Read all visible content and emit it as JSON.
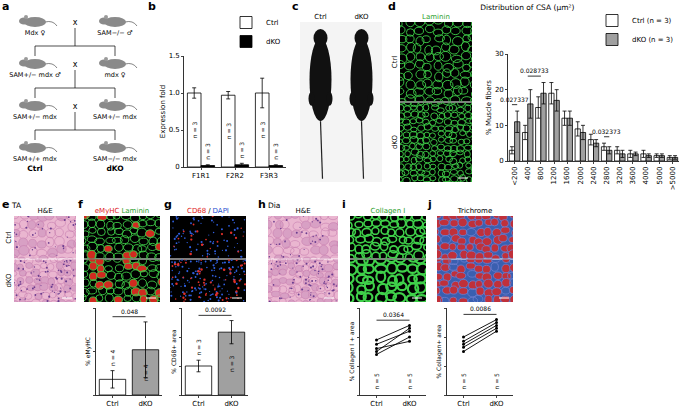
{
  "panel_labels": [
    "a",
    "b",
    "c",
    "d",
    "e",
    "f",
    "g",
    "h",
    "i",
    "j"
  ],
  "scheme": {
    "generations": [
      [
        "Mdx ♀",
        "SAM−/− ♂"
      ],
      [
        "SAM+/− mdx ♂",
        "mdx ♀"
      ],
      [
        "SAM+/− mdx",
        "SAM+/− mdx"
      ],
      [
        "SAM+/+ mdx",
        "SAM−/− mdx"
      ]
    ],
    "cross": "x",
    "groups": [
      "Ctrl",
      "dKO"
    ]
  },
  "images": {
    "c": {
      "columns": [
        "Ctrl",
        "dKO"
      ]
    },
    "d": {
      "stain": [
        {
          "text": "Laminin",
          "color": "#2ca02c"
        }
      ],
      "rows": [
        "Ctrl",
        "dKO"
      ]
    },
    "e": {
      "tissue": "TA",
      "stain": [
        {
          "text": "H&E",
          "color": "#000000"
        }
      ],
      "rows": [
        "Ctrl",
        "dKO"
      ]
    },
    "f": {
      "stain": [
        {
          "text": "eMyHC",
          "color": "#e0201b"
        },
        {
          "text": "Laminin",
          "color": "#2ca02c"
        }
      ]
    },
    "g": {
      "stain": [
        {
          "text": "CD68",
          "color": "#e0201b"
        },
        {
          "text": "/",
          "color": "#000000"
        },
        {
          "text": "DAPI",
          "color": "#1f4fd0"
        }
      ]
    },
    "h": {
      "tissue": "Dia",
      "stain": [
        {
          "text": "H&E",
          "color": "#000000"
        }
      ]
    },
    "i": {
      "stain": [
        {
          "text": "Collagen I",
          "color": "#2ca02c"
        }
      ]
    },
    "j": {
      "stain": [
        {
          "text": "Trichrome",
          "color": "#000000"
        }
      ]
    }
  },
  "chart_data": [
    {
      "type": "bar",
      "ylabel": "Expression fold",
      "categories": [
        "F1R1",
        "F2R2",
        "F3R3"
      ],
      "series": [
        {
          "name": "Ctrl",
          "color": "#ffffff",
          "values": [
            1.0,
            0.97,
            1.0
          ],
          "errors": [
            0.07,
            0.05,
            0.2
          ]
        },
        {
          "name": "dKO",
          "color": "#000000",
          "values": [
            0.02,
            0.03,
            0.02
          ],
          "errors": [
            0.01,
            0.02,
            0.01
          ]
        }
      ],
      "ylim": [
        0,
        1.5
      ],
      "yticks": [
        0,
        0.5,
        {
          "value": 1,
          "label": "1.0"
        },
        1.5
      ],
      "grid": false,
      "legend": "top right",
      "annotations": [
        {
          "text": "n = 3",
          "category": "F1R1",
          "series": "Ctrl"
        },
        {
          "text": "n = 3",
          "category": "F1R1",
          "series": "dKO"
        },
        {
          "text": "n = 3",
          "category": "F2R2",
          "series": "Ctrl"
        },
        {
          "text": "n = 3",
          "category": "F2R2",
          "series": "dKO"
        },
        {
          "text": "n = 3",
          "category": "F3R3",
          "series": "Ctrl"
        },
        {
          "text": "n = 3",
          "category": "F3R3",
          "series": "dKO"
        }
      ]
    },
    {
      "type": "bar",
      "title": "Distribution of CSA (µm²)",
      "ylabel": "% Muscle fibers",
      "categories": [
        "<200",
        "400",
        "800",
        "1200",
        "1600",
        "2000",
        "2400",
        "2800",
        "3200",
        "3600",
        "4000",
        "5000",
        ">5000"
      ],
      "series": [
        {
          "name": "Ctrl (n = 3)",
          "color": "#ffffff",
          "values": [
            3,
            8,
            15,
            19,
            12,
            9,
            6,
            4,
            3,
            2,
            2,
            1.5,
            1
          ],
          "errors": [
            1,
            2,
            3,
            3,
            2,
            2,
            1.5,
            1,
            1,
            1,
            1,
            0.5,
            0.5
          ]
        },
        {
          "name": "dKO (n = 3)",
          "color": "#a0a0a0",
          "values": [
            11,
            16,
            19,
            17,
            12,
            8,
            5,
            3,
            2,
            2,
            1.5,
            1.5,
            1
          ],
          "errors": [
            3,
            4,
            3,
            3,
            2,
            2,
            1,
            1,
            1,
            0.5,
            0.5,
            0.5,
            0.5
          ]
        }
      ],
      "ylim": [
        0,
        30
      ],
      "yticks": [
        0,
        10,
        20,
        30
      ],
      "grid": false,
      "legend": "top right",
      "annotations": [
        {
          "text": "0.027337",
          "categories": [
            "<200"
          ]
        },
        {
          "text": "0.028733",
          "categories": [
            "400",
            "800"
          ]
        },
        {
          "text": "0.032373",
          "categories": [
            "2800"
          ]
        }
      ]
    },
    {
      "type": "bar",
      "ylabel": "% eMyHC",
      "categories": [
        "Ctrl",
        "dKO"
      ],
      "values": [
        9,
        26
      ],
      "errors": [
        5,
        16
      ],
      "colors": [
        "#ffffff",
        "#a0a0a0"
      ],
      "ylim": [
        0,
        50
      ],
      "yticks": [
        0,
        25,
        50
      ],
      "tick_labels": "x",
      "grid": false,
      "annotations": [
        {
          "text": "n = 4",
          "category": "Ctrl"
        },
        {
          "text": "n = 4",
          "category": "dKO"
        },
        {
          "text": "0.048",
          "categories": [
            "Ctrl",
            "dKO"
          ]
        }
      ]
    },
    {
      "type": "bar",
      "ylabel": "% CD68+ area",
      "categories": [
        "Ctrl",
        "dKO"
      ],
      "values": [
        3,
        6.5
      ],
      "errors": [
        0.6,
        1.2
      ],
      "colors": [
        "#ffffff",
        "#a0a0a0"
      ],
      "ylim": [
        0,
        9
      ],
      "yticks": [
        0,
        3,
        6,
        9
      ],
      "tick_labels": "x",
      "grid": false,
      "annotations": [
        {
          "text": "n = 3",
          "category": "Ctrl"
        },
        {
          "text": "n = 3",
          "category": "dKO"
        },
        {
          "text": "0.0092",
          "categories": [
            "Ctrl",
            "dKO"
          ]
        }
      ]
    },
    {
      "type": "line",
      "ylabel": "% Collagen I + area",
      "categories": [
        "Ctrl",
        "dKO"
      ],
      "marker": "circle",
      "series": [
        {
          "color": "#000000",
          "values": [
            28,
            40
          ]
        },
        {
          "color": "#000000",
          "values": [
            32,
            37
          ]
        },
        {
          "color": "#000000",
          "values": [
            35,
            44
          ]
        },
        {
          "color": "#000000",
          "values": [
            38,
            48
          ]
        },
        {
          "color": "#000000",
          "values": [
            30,
            46
          ]
        }
      ],
      "ylim": [
        0,
        60
      ],
      "yticks": [
        0,
        20,
        40,
        60
      ],
      "tick_labels": "x",
      "grid": false,
      "annotations": [
        {
          "text": "n = 5",
          "category": "Ctrl"
        },
        {
          "text": "n = 5",
          "category": "dKO"
        },
        {
          "text": "0.0364",
          "categories": [
            "Ctrl",
            "dKO"
          ]
        }
      ]
    },
    {
      "type": "line",
      "ylabel": "% Collagen+ area",
      "categories": [
        "Ctrl",
        "dKO"
      ],
      "marker": "circle",
      "series": [
        {
          "color": "#000000",
          "values": [
            30,
            44
          ]
        },
        {
          "color": "#000000",
          "values": [
            33,
            46
          ]
        },
        {
          "color": "#000000",
          "values": [
            35,
            48
          ]
        },
        {
          "color": "#000000",
          "values": [
            37,
            50
          ]
        },
        {
          "color": "#000000",
          "values": [
            40,
            52
          ]
        }
      ],
      "ylim": [
        0,
        60
      ],
      "yticks": [
        0,
        20,
        40,
        60
      ],
      "tick_labels": "x",
      "grid": false,
      "annotations": [
        {
          "text": "n = 5",
          "category": "Ctrl"
        },
        {
          "text": "n = 5",
          "category": "dKO"
        },
        {
          "text": "0.0086",
          "categories": [
            "Ctrl",
            "dKO"
          ]
        }
      ]
    }
  ]
}
